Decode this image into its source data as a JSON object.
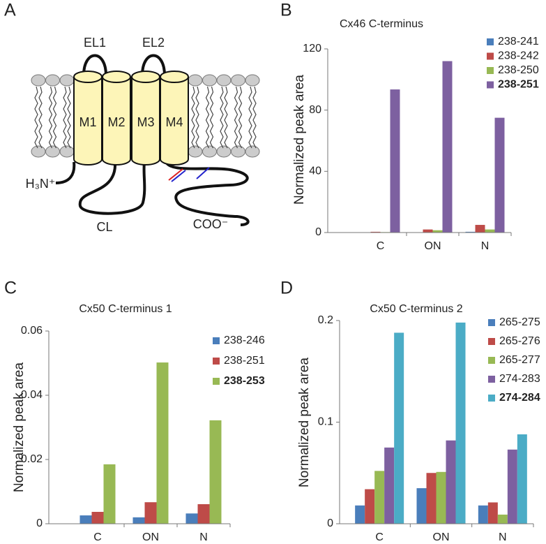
{
  "panel_labels": [
    "A",
    "B",
    "C",
    "D"
  ],
  "diagram": {
    "el1": "EL1",
    "el2": "EL2",
    "m1": "M1",
    "m2": "M2",
    "m3": "M3",
    "m4": "M4",
    "n_terminus": "H₃N⁺",
    "cl": "CL",
    "c_terminus": "COO⁻"
  },
  "chart_data": [
    {
      "type": "bar",
      "title": "Cx46 C-terminus",
      "y_label": "Normalized peak area",
      "categories": [
        "C",
        "ON",
        "N"
      ],
      "ylim": [
        0,
        120
      ],
      "yticks": [
        0,
        40,
        80,
        120
      ],
      "grid": false,
      "series": [
        {
          "name": "238-241",
          "color": "#4a7ebb",
          "values": [
            0,
            0,
            0.5
          ]
        },
        {
          "name": "238-242",
          "color": "#be4b48",
          "values": [
            0.5,
            2,
            5
          ]
        },
        {
          "name": "238-250",
          "color": "#98b954",
          "values": [
            0.3,
            1.5,
            2
          ]
        },
        {
          "name": "238-251",
          "color": "#7d60a0",
          "values": [
            93.5,
            112,
            75
          ],
          "bold": true
        }
      ]
    },
    {
      "type": "bar",
      "title": "Cx50 C-terminus 1",
      "y_label": "Normalized peak area",
      "categories": [
        "C",
        "ON",
        "N"
      ],
      "ylim": [
        0,
        0.06
      ],
      "yticks": [
        0,
        0.02,
        0.04,
        0.06
      ],
      "grid": false,
      "series": [
        {
          "name": "238-246",
          "color": "#4a7ebb",
          "values": [
            0.0026,
            0.002,
            0.0032
          ]
        },
        {
          "name": "238-251",
          "color": "#be4b48",
          "values": [
            0.0037,
            0.0067,
            0.0061
          ]
        },
        {
          "name": "238-253",
          "color": "#98b954",
          "values": [
            0.0185,
            0.0502,
            0.0322
          ],
          "bold": true
        }
      ]
    },
    {
      "type": "bar",
      "title": "Cx50 C-terminus 2",
      "y_label": "Normalized peak area",
      "categories": [
        "C",
        "ON",
        "N"
      ],
      "ylim": [
        0,
        0.2
      ],
      "yticks": [
        0,
        0.1,
        0.2
      ],
      "grid": false,
      "series": [
        {
          "name": "265-275",
          "color": "#4a7ebb",
          "values": [
            0.018,
            0.035,
            0.018
          ]
        },
        {
          "name": "265-276",
          "color": "#be4b48",
          "values": [
            0.034,
            0.05,
            0.021
          ]
        },
        {
          "name": "265-277",
          "color": "#98b954",
          "values": [
            0.052,
            0.051,
            0.009
          ]
        },
        {
          "name": "274-283",
          "color": "#7d60a0",
          "values": [
            0.075,
            0.082,
            0.073
          ]
        },
        {
          "name": "274-284",
          "color": "#4bacc6",
          "values": [
            0.188,
            0.198,
            0.088
          ],
          "bold": true
        }
      ]
    }
  ]
}
